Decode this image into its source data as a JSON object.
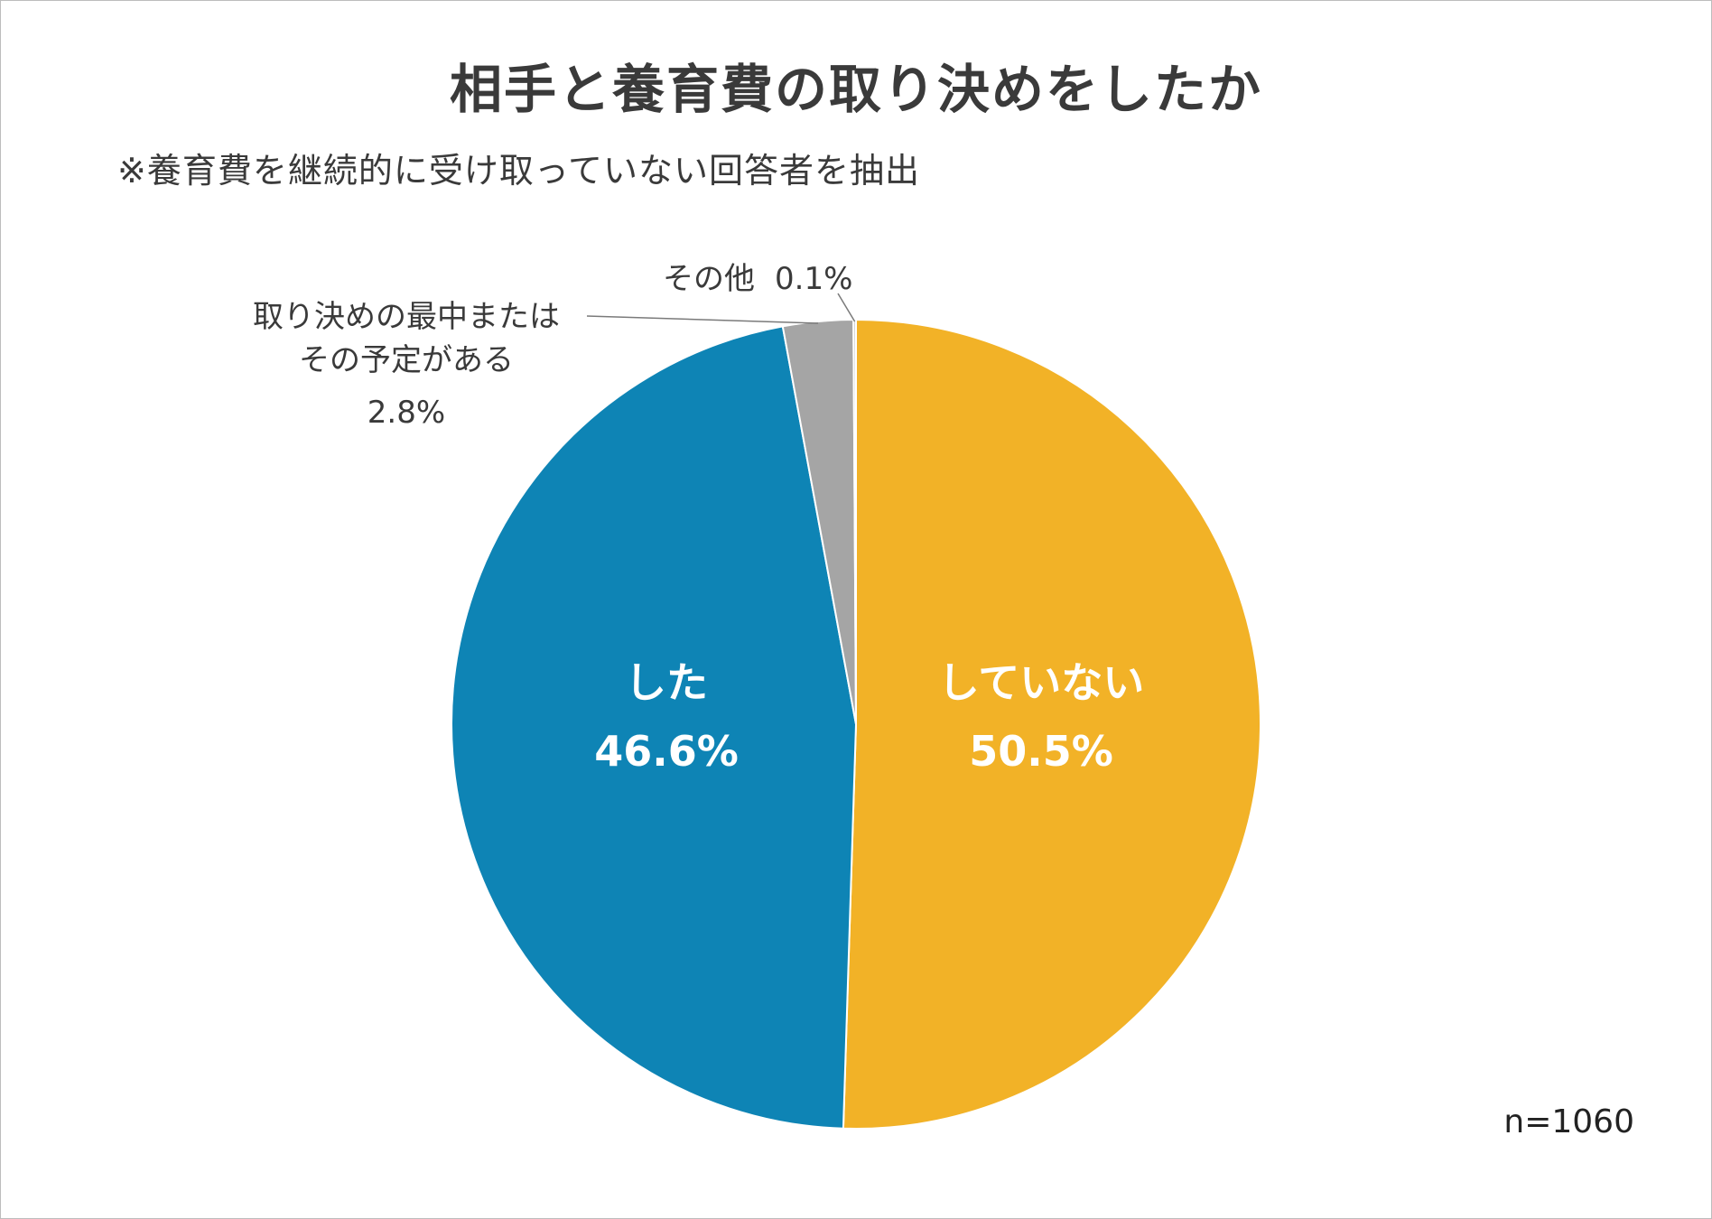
{
  "chart_data": {
    "type": "pie",
    "title": "相手と養育費の取り決めをしたか",
    "subtitle": "※養育費を継続的に受け取っていない回答者を抽出",
    "note": "n=1060",
    "slices": [
      {
        "label": "していない",
        "value": 50.5,
        "value_label": "50.5%",
        "color": "#F2B227"
      },
      {
        "label": "した",
        "value": 46.6,
        "value_label": "46.6%",
        "color": "#0E84B5"
      },
      {
        "label_lines": [
          "取り決めの最中または",
          "その予定がある"
        ],
        "value": 2.8,
        "value_label": "2.8%",
        "color": "#A5A5A5"
      },
      {
        "label": "その他",
        "value": 0.1,
        "value_label": "0.1%",
        "color": "#C8C8C8"
      }
    ]
  }
}
